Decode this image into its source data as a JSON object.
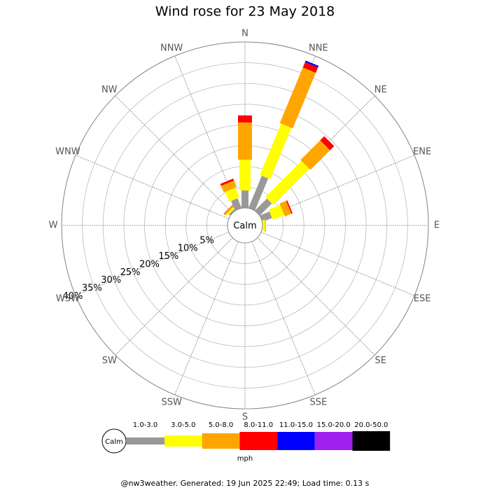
{
  "chart_data": {
    "type": "windrose",
    "title": "Wind rose for 23 May 2018",
    "directions": [
      "N",
      "NNE",
      "NE",
      "ENE",
      "E",
      "ESE",
      "SE",
      "SSE",
      "S",
      "SSW",
      "SW",
      "WSW",
      "W",
      "WNW",
      "NW",
      "NNW"
    ],
    "center_label": "Calm",
    "rlim": [
      0,
      40
    ],
    "rticks": [
      {
        "value": 5,
        "label": "5%"
      },
      {
        "value": 10,
        "label": "10%"
      },
      {
        "value": 15,
        "label": "15%"
      },
      {
        "value": 20,
        "label": "20%"
      },
      {
        "value": 25,
        "label": "25%"
      },
      {
        "value": 30,
        "label": "30%"
      },
      {
        "value": 35,
        "label": "35%"
      },
      {
        "value": 40,
        "label": "40%"
      }
    ],
    "series": [
      {
        "name": "1.0-3.0",
        "color": "#999999",
        "values": [
          4.2,
          8.4,
          4.1,
          2.5,
          0,
          0,
          0,
          0,
          0,
          0,
          0,
          0,
          0,
          0,
          0.4,
          2.5
        ]
      },
      {
        "name": "3.0-5.0",
        "color": "#ffff00",
        "values": [
          7.4,
          13.4,
          12.3,
          3,
          0.6,
          0,
          0,
          0,
          0,
          0,
          0,
          0,
          0,
          0,
          0.5,
          2.6
        ]
      },
      {
        "name": "5.0-8.0",
        "color": "#ffa500",
        "values": [
          9,
          14.5,
          6.7,
          1.7,
          0.2,
          0,
          0,
          0,
          0,
          0,
          0,
          0,
          0,
          0,
          0.4,
          1.7
        ]
      },
      {
        "name": "8.0-11.0",
        "color": "#ff0000",
        "values": [
          1.7,
          1.4,
          1.4,
          0.3,
          0,
          0,
          0,
          0,
          0,
          0,
          0,
          0,
          0,
          0,
          0.1,
          0.5
        ]
      },
      {
        "name": "11.0-15.0",
        "color": "#0000ff",
        "values": [
          0,
          0.4,
          0,
          0,
          0,
          0,
          0,
          0,
          0,
          0,
          0,
          0,
          0,
          0,
          0,
          0
        ]
      },
      {
        "name": "15.0-20.0",
        "color": "#a020f0",
        "values": [
          0,
          0,
          0,
          0,
          0,
          0,
          0,
          0,
          0,
          0,
          0,
          0,
          0,
          0,
          0,
          0
        ]
      },
      {
        "name": "20.0-50.0",
        "color": "#000000",
        "values": [
          0,
          0,
          0,
          0,
          0,
          0,
          0,
          0,
          0,
          0,
          0,
          0,
          0,
          0,
          0,
          0
        ]
      }
    ],
    "legend_unit": "mph",
    "footer": "@nw3weather. Generated: 19 Jun 2025 22:49; Load time: 0.13 s"
  }
}
